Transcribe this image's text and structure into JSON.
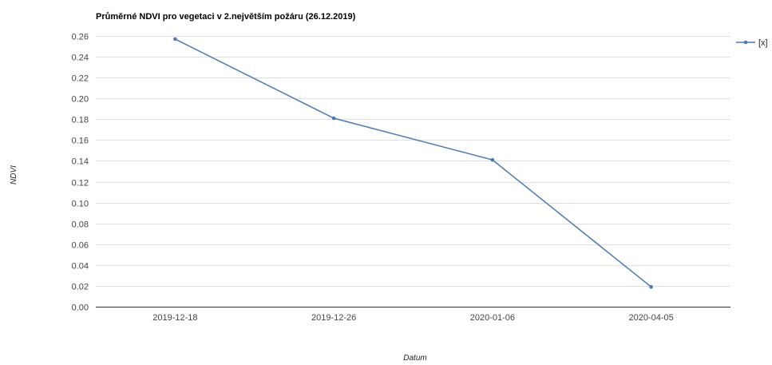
{
  "chart_data": {
    "type": "line",
    "title": "Průměrné NDVI pro vegetaci v 2.největším požáru (26.12.2019)",
    "xlabel": "Datum",
    "ylabel": "NDVI",
    "categories": [
      "2019-12-18",
      "2019-12-26",
      "2020-01-06",
      "2020-04-05"
    ],
    "series": [
      {
        "name": "[x]",
        "values": [
          0.257,
          0.181,
          0.141,
          0.019
        ],
        "color": "#4a78b9"
      }
    ],
    "ylim": [
      0,
      0.26
    ],
    "yticks": [
      0,
      0.02,
      0.04,
      0.06,
      0.08,
      0.1,
      0.12,
      0.14,
      0.16,
      0.18,
      0.2,
      0.22,
      0.24,
      0.26
    ],
    "ytick_labels": [
      "0.00",
      "0.02",
      "0.04",
      "0.06",
      "0.08",
      "0.10",
      "0.12",
      "0.14",
      "0.16",
      "0.18",
      "0.20",
      "0.22",
      "0.24",
      "0.26"
    ],
    "grid": true,
    "legend_position": "top-right"
  }
}
